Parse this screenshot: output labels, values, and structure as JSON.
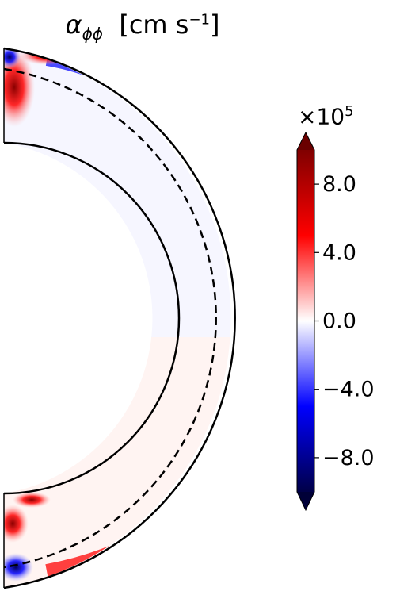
{
  "chart_data": {
    "type": "heatmap",
    "title_symbol": "α",
    "title_subscript": "ϕϕ",
    "title_units": "[cm s",
    "title_units_exp": "−1",
    "title_units_close": "]",
    "geometry": "meridional half-annulus (spherical shell slice)",
    "colormap": "seismic",
    "colorbar": {
      "vmin": -10,
      "vmax": 10,
      "scale_label_base": "×10",
      "scale_label_exp": "5",
      "ticks": [
        8.0,
        4.0,
        0.0,
        -4.0,
        -8.0
      ],
      "tick_labels": [
        "8.0",
        "4.0",
        "0.0",
        "−4.0",
        "−8.0"
      ],
      "extend": "both"
    },
    "regions": [
      {
        "location": "northern high latitudes near outer surface",
        "sign": "negative",
        "magnitude": "strong"
      },
      {
        "location": "pole edges (north and south)",
        "sign": "positive",
        "magnitude": "strong"
      },
      {
        "location": "southern high latitudes near outer surface",
        "sign": "positive",
        "magnitude": "strong"
      },
      {
        "location": "equatorial bulk of shell",
        "sign": "near zero",
        "magnitude": "weak"
      }
    ],
    "boundaries": [
      "inner shell boundary (solid)",
      "outer shell boundary (solid)",
      "intermediate radius (dashed)"
    ]
  }
}
